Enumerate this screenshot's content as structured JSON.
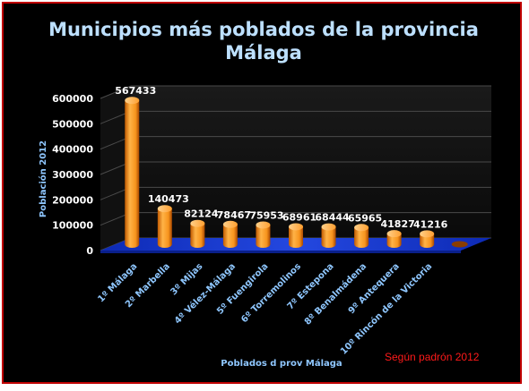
{
  "chart_data": {
    "type": "bar",
    "title_line1": "Municipios más poblados de la provincia",
    "title_line2": "Málaga",
    "xlabel": "Poblados d prov Málaga",
    "ylabel": "Población 2012",
    "ylim": [
      0,
      600000
    ],
    "yticks": [
      0,
      100000,
      200000,
      300000,
      400000,
      500000,
      600000
    ],
    "grid": true,
    "categories": [
      "1º Málaga",
      "2º Marbella",
      "3º Mijas",
      "4º Vélez-Málaga",
      "5º Fuengirola",
      "6º Torremolinos",
      "7º Estepona",
      "8º Benalmádena",
      "9º Antequera",
      "10º Rincón de la Victoria"
    ],
    "values": [
      567433,
      140473,
      82124,
      78467,
      75953,
      68961,
      68444,
      65965,
      41827,
      41216
    ],
    "annotation": "Según padrón 2012",
    "colors": {
      "bar": "#f7941d",
      "floor": "#1f3fd1",
      "title": "#bde0ff",
      "note": "#ff1a1a"
    }
  }
}
